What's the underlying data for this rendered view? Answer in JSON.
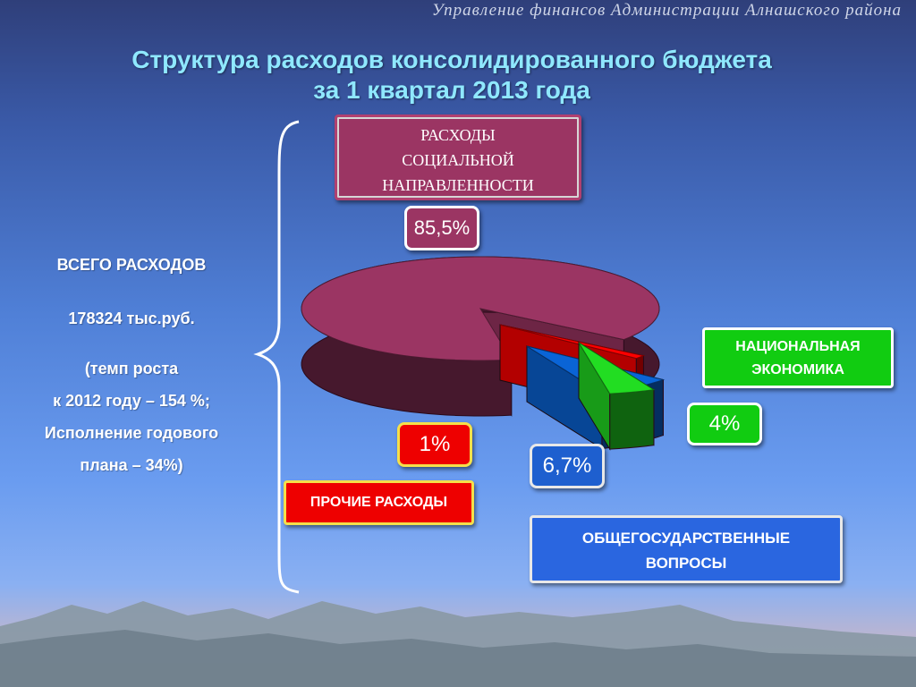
{
  "header": "Управление финансов  Администрации Алнашского района",
  "title_line1": "Структура расходов консолидированного бюджета",
  "title_line2": "за 1 квартал  2013 года",
  "summary": {
    "total_label": "ВСЕГО РАСХОДОВ",
    "total_value": "178324 тыс.руб.",
    "growth_line1": "(темп роста",
    "growth_line2": "к  2012 году – 154 %;",
    "plan_line1": "Исполнение годового",
    "plan_line2": "плана – 34%)"
  },
  "chart_data": {
    "type": "pie",
    "categories": [
      "РАСХОДЫ СОЦИАЛЬНОЙ НАПРАВЛЕННОСТИ",
      "ПРОЧИЕ РАСХОДЫ",
      "ОБЩЕГОСУДАРСТВЕННЫЕ ВОПРОСЫ",
      "НАЦИОНАЛЬНАЯ ЭКОНОМИКА"
    ],
    "values": [
      85.5,
      1,
      6.7,
      4
    ],
    "value_labels": [
      "85,5%",
      "1%",
      "6,7%",
      "4%"
    ],
    "colors": [
      "#9b3563",
      "#ff0000",
      "#0a64d6",
      "#22dd22"
    ],
    "three_d": true,
    "exploded": true
  },
  "labels": {
    "social_l1": "РАСХОДЫ",
    "social_l2": "СОЦИАЛЬНОЙ",
    "social_l3": "НАПРАВЛЕННОСТИ",
    "other": "ПРОЧИЕ РАСХОДЫ",
    "general_l1": "ОБЩЕГОСУДАРСТВЕННЫЕ",
    "general_l2": "ВОПРОСЫ",
    "economy_l1": "НАЦИОНАЛЬНАЯ",
    "economy_l2": "ЭКОНОМИКА"
  }
}
